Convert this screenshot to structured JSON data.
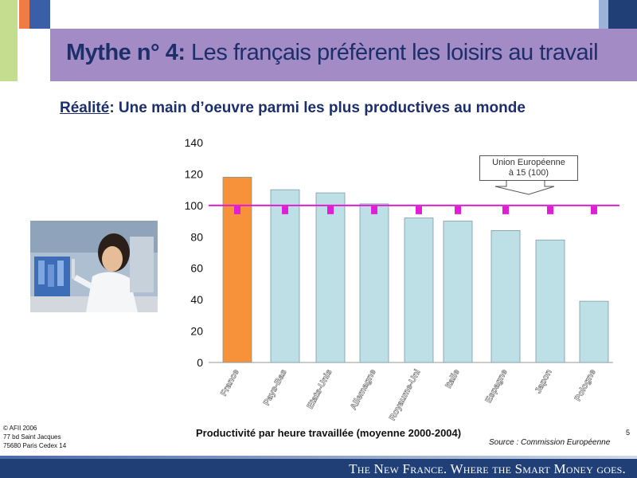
{
  "header": {
    "title_bold": "Mythe n° 4:",
    "title_rest": " Les français préfèrent les loisirs au travail",
    "subtitle_underlined": "Réalité",
    "subtitle_rest": ": Une main d’oeuvre parmi les plus productives au monde"
  },
  "colors": {
    "title_bar": "#a38cc6",
    "france_bar": "#f7923a",
    "other_bars": "#bde0e6",
    "eu_line": "#e01fd4",
    "footer": "#1f3f76"
  },
  "chart_data": {
    "type": "bar",
    "categories": [
      "France",
      "Pays-Bas",
      "Etats-Unis",
      "Allemagne",
      "Royaume-Uni",
      "Italie",
      "Espagne",
      "Japon",
      "Pologne"
    ],
    "values": [
      118,
      110,
      108,
      101,
      92,
      90,
      84,
      78,
      39
    ],
    "ylim": [
      0,
      140
    ],
    "yticks": [
      0,
      20,
      40,
      60,
      80,
      100,
      120,
      140
    ],
    "reference_line": {
      "value": 100,
      "label": "Union Européenne\nà 15 (100)"
    },
    "xlabel": "Productivité par heure travaillée (moyenne 2000-2004)",
    "highlight_category": "France",
    "grid": false
  },
  "ue_callout": {
    "line1": "Union Européenne",
    "line2": "à 15 (100)"
  },
  "source": "Source : Commission Européenne",
  "page_number": "5",
  "address": {
    "line1": "© AFII 2006",
    "line2": "77 bd Saint Jacques",
    "line3": "75680 Paris Cedex 14"
  },
  "footer": {
    "tagline": "The New France. Where the Smart Money goes."
  }
}
